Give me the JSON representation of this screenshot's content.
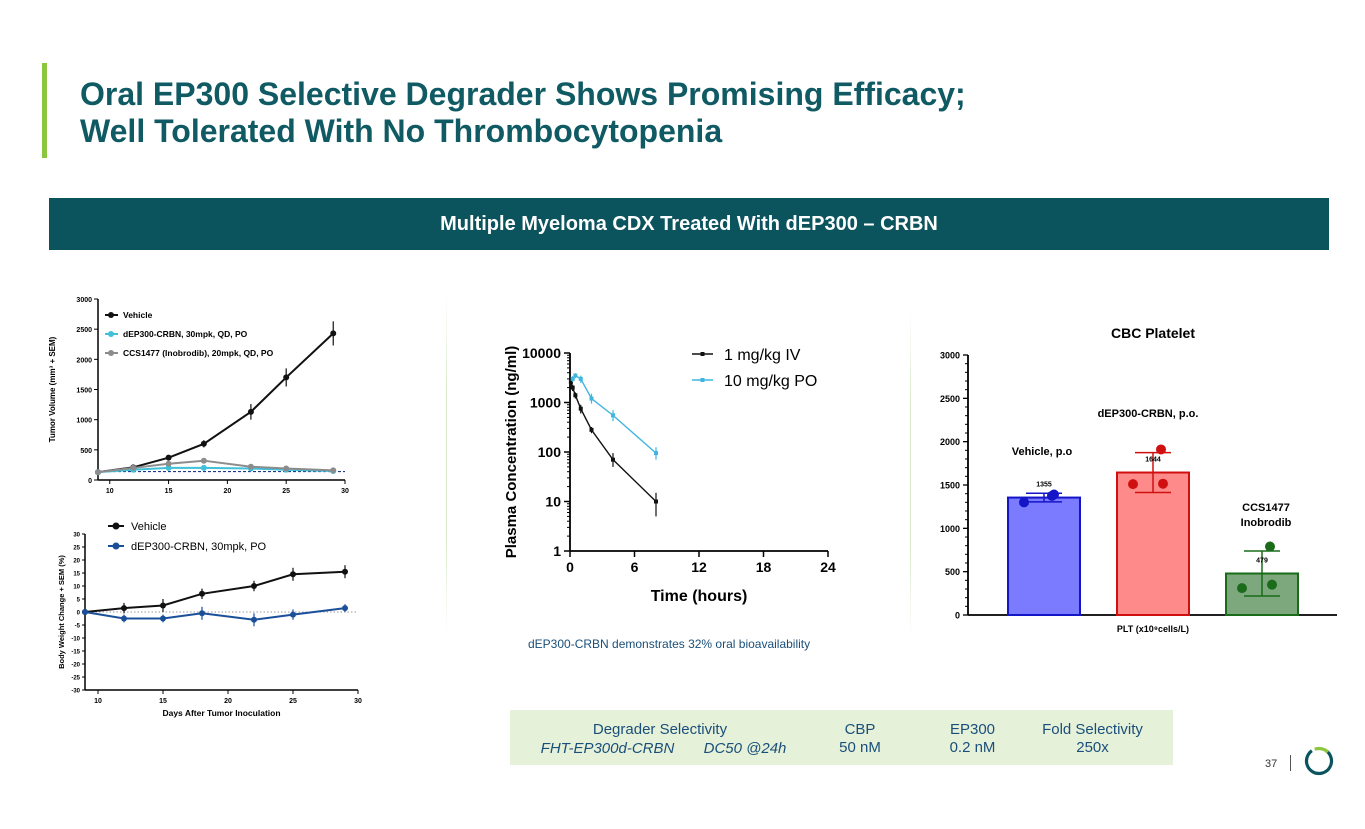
{
  "header": {
    "title_line1": "Oral EP300 Selective Degrader Shows Promising Efficacy;",
    "title_line2": "Well Tolerated With No Thrombocytopenia",
    "banner": "Multiple Myeloma CDX Treated With dEP300 – CRBN"
  },
  "colors": {
    "teal": "#0b545e",
    "green": "#8cc63f",
    "blue_text": "#1a4f7a"
  },
  "chart_data": [
    {
      "id": "tumor_volume",
      "type": "line",
      "xlabel": "",
      "ylabel": "Tumor Volume (mm³ + SEM)",
      "xlim": [
        9,
        30
      ],
      "ylim": [
        0,
        3000
      ],
      "xticks": [
        10,
        15,
        20,
        25,
        30
      ],
      "yticks": [
        0,
        500,
        1000,
        1500,
        2000,
        2500,
        3000
      ],
      "series": [
        {
          "name": "Vehicle",
          "color": "#111111",
          "x": [
            9,
            12,
            15,
            18,
            22,
            25,
            29
          ],
          "y": [
            130,
            210,
            370,
            600,
            1130,
            1700,
            2430
          ],
          "err": [
            20,
            30,
            40,
            60,
            130,
            150,
            200
          ]
        },
        {
          "name": "dEP300-CRBN, 30mpk, QD, PO",
          "color": "#3fc1d9",
          "x": [
            9,
            12,
            15,
            18,
            22,
            25,
            29
          ],
          "y": [
            130,
            170,
            200,
            200,
            190,
            170,
            150
          ],
          "err": [
            15,
            20,
            20,
            20,
            20,
            20,
            20
          ]
        },
        {
          "name": "CCS1477 (Inobrodib), 20mpk, QD, PO",
          "color": "#8c8c8c",
          "x": [
            9,
            12,
            15,
            18,
            22,
            25,
            29
          ],
          "y": [
            130,
            200,
            270,
            320,
            220,
            190,
            160
          ],
          "err": [
            15,
            20,
            25,
            30,
            25,
            20,
            20
          ]
        }
      ]
    },
    {
      "id": "body_weight",
      "type": "line",
      "xlabel": "Days After Tumor Inoculation",
      "ylabel": "Body Weight Change + SEM (%)",
      "xlim": [
        9,
        30
      ],
      "ylim": [
        -30,
        30
      ],
      "xticks": [
        10,
        15,
        20,
        25,
        30
      ],
      "yticks": [
        -30,
        -25,
        -20,
        -15,
        -10,
        -5,
        0,
        5,
        10,
        15,
        20,
        25,
        30
      ],
      "series": [
        {
          "name": "Vehicle",
          "color": "#111111",
          "x": [
            9,
            12,
            15,
            18,
            22,
            25,
            29
          ],
          "y": [
            0,
            1.5,
            2.5,
            7,
            10,
            14.5,
            15.5
          ],
          "err": [
            0.5,
            2,
            2.5,
            2,
            2,
            2.5,
            2.5
          ]
        },
        {
          "name": "dEP300-CRBN, 30mpk, PO",
          "color": "#1a4f9a",
          "x": [
            9,
            12,
            15,
            18,
            22,
            25,
            29
          ],
          "y": [
            0,
            -2.5,
            -2.5,
            -0.5,
            -3,
            -1,
            1.5
          ],
          "err": [
            0.5,
            1.5,
            1.5,
            2.5,
            2.5,
            2,
            1.5
          ]
        }
      ]
    },
    {
      "id": "pk",
      "type": "line",
      "xlabel": "Time (hours)",
      "ylabel": "Plasma Concentration (ng/ml)",
      "xlim": [
        0,
        24
      ],
      "ylim_log": [
        1,
        10000
      ],
      "xticks": [
        0,
        6,
        12,
        18,
        24
      ],
      "ytick_labels": [
        "1",
        "10",
        "100",
        "1000",
        "10000"
      ],
      "series": [
        {
          "name": "1 mg/kg IV",
          "color": "#111111",
          "x": [
            0.083,
            0.25,
            0.5,
            1,
            2,
            4,
            8
          ],
          "y": [
            2600,
            2000,
            1400,
            750,
            280,
            70,
            10
          ],
          "err_lo": [
            2200,
            1700,
            1200,
            600,
            240,
            50,
            5
          ],
          "err_hi": [
            3000,
            2300,
            1600,
            900,
            320,
            95,
            15
          ]
        },
        {
          "name": "10 mg/kg PO",
          "color": "#3fb5e0",
          "x": [
            0.25,
            0.5,
            1,
            2,
            4,
            8
          ],
          "y": [
            3000,
            3500,
            3000,
            1200,
            550,
            95
          ],
          "err_lo": [
            2600,
            3100,
            2500,
            950,
            420,
            70
          ],
          "err_hi": [
            3400,
            3900,
            3500,
            1500,
            700,
            125
          ]
        }
      ],
      "caption": "dEP300-CRBN demonstrates 32% oral bioavailability"
    },
    {
      "id": "platelet",
      "type": "bar",
      "title": "CBC Platelet",
      "xlabel": "PLT (x10⁹cells/L)",
      "ylim": [
        0,
        3000
      ],
      "yticks": [
        0,
        500,
        1000,
        1500,
        2000,
        2500,
        3000
      ],
      "bars": [
        {
          "label": "Vehicle, p.o",
          "value": 1355,
          "value_label": "1355",
          "fill": "#7b7bff",
          "stroke": "#1515c8",
          "err": 50,
          "points": [
            1300,
            1390,
            1375
          ]
        },
        {
          "label": "dEP300-CRBN, p.o.",
          "value": 1644,
          "value_label": "1644",
          "fill": "#ff8a8a",
          "stroke": "#d01010",
          "err": 230,
          "points": [
            1510,
            1515,
            1910
          ]
        },
        {
          "label": "CCS1477 Inobrodib",
          "label_line1": "CCS1477",
          "label_line2": "Inobrodib",
          "value": 479,
          "value_label": "479",
          "fill": "#7da87d",
          "stroke": "#1a6b1a",
          "err": 260,
          "points": [
            310,
            350,
            790
          ]
        }
      ]
    }
  ],
  "selectivity_table": {
    "title": "Degrader Selectivity",
    "compound": "FHT-EP300d-CRBN",
    "assay": "DC50 @24h",
    "col_cbp": "CBP",
    "val_cbp": "50 nM",
    "col_ep300": "EP300",
    "val_ep300": "0.2 nM",
    "col_fold": "Fold Selectivity",
    "val_fold": "250x"
  },
  "footer": {
    "page_number": "37"
  }
}
